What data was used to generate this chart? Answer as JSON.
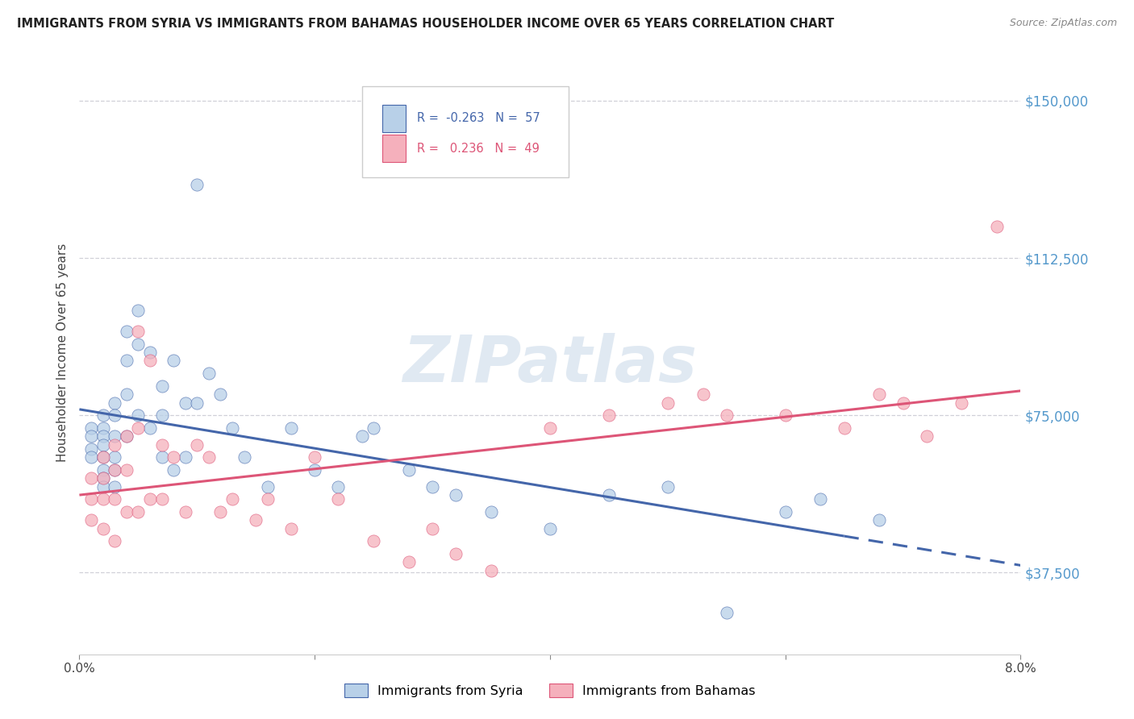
{
  "title": "IMMIGRANTS FROM SYRIA VS IMMIGRANTS FROM BAHAMAS HOUSEHOLDER INCOME OVER 65 YEARS CORRELATION CHART",
  "source": "Source: ZipAtlas.com",
  "ylabel": "Householder Income Over 65 years",
  "xlim": [
    0.0,
    0.08
  ],
  "ylim": [
    18000,
    162000
  ],
  "yticks": [
    37500,
    75000,
    112500,
    150000
  ],
  "ytick_labels": [
    "$37,500",
    "$75,000",
    "$112,500",
    "$150,000"
  ],
  "xticks": [
    0.0,
    0.02,
    0.04,
    0.06,
    0.08
  ],
  "xtick_labels": [
    "0.0%",
    "",
    "",
    "",
    "8.0%"
  ],
  "background_color": "#ffffff",
  "grid_color": "#d0d0d8",
  "legend_R_syria": "-0.263",
  "legend_N_syria": "57",
  "legend_R_bahamas": "0.236",
  "legend_N_bahamas": "49",
  "syria_color": "#b8d0e8",
  "bahamas_color": "#f5b0bc",
  "syria_line_color": "#4466aa",
  "bahamas_line_color": "#dd5577",
  "watermark": "ZIPatlas",
  "syria_scatter_x": [
    0.001,
    0.001,
    0.001,
    0.001,
    0.002,
    0.002,
    0.002,
    0.002,
    0.002,
    0.002,
    0.002,
    0.002,
    0.003,
    0.003,
    0.003,
    0.003,
    0.003,
    0.003,
    0.004,
    0.004,
    0.004,
    0.004,
    0.005,
    0.005,
    0.005,
    0.006,
    0.006,
    0.007,
    0.007,
    0.007,
    0.008,
    0.008,
    0.009,
    0.009,
    0.01,
    0.01,
    0.011,
    0.012,
    0.013,
    0.014,
    0.016,
    0.018,
    0.02,
    0.022,
    0.024,
    0.025,
    0.028,
    0.03,
    0.032,
    0.035,
    0.04,
    0.045,
    0.05,
    0.055,
    0.06,
    0.063,
    0.068
  ],
  "syria_scatter_y": [
    72000,
    70000,
    67000,
    65000,
    75000,
    72000,
    70000,
    68000,
    65000,
    62000,
    60000,
    58000,
    78000,
    75000,
    70000,
    65000,
    62000,
    58000,
    95000,
    88000,
    80000,
    70000,
    100000,
    92000,
    75000,
    90000,
    72000,
    82000,
    75000,
    65000,
    88000,
    62000,
    78000,
    65000,
    130000,
    78000,
    85000,
    80000,
    72000,
    65000,
    58000,
    72000,
    62000,
    58000,
    70000,
    72000,
    62000,
    58000,
    56000,
    52000,
    48000,
    56000,
    58000,
    28000,
    52000,
    55000,
    50000
  ],
  "bahamas_scatter_x": [
    0.001,
    0.001,
    0.001,
    0.002,
    0.002,
    0.002,
    0.002,
    0.003,
    0.003,
    0.003,
    0.003,
    0.004,
    0.004,
    0.004,
    0.005,
    0.005,
    0.005,
    0.006,
    0.006,
    0.007,
    0.007,
    0.008,
    0.009,
    0.01,
    0.011,
    0.012,
    0.013,
    0.015,
    0.016,
    0.018,
    0.02,
    0.022,
    0.025,
    0.028,
    0.03,
    0.032,
    0.035,
    0.04,
    0.045,
    0.05,
    0.053,
    0.055,
    0.06,
    0.065,
    0.068,
    0.07,
    0.072,
    0.075,
    0.078
  ],
  "bahamas_scatter_y": [
    60000,
    55000,
    50000,
    65000,
    60000,
    55000,
    48000,
    68000,
    62000,
    55000,
    45000,
    70000,
    62000,
    52000,
    95000,
    72000,
    52000,
    88000,
    55000,
    68000,
    55000,
    65000,
    52000,
    68000,
    65000,
    52000,
    55000,
    50000,
    55000,
    48000,
    65000,
    55000,
    45000,
    40000,
    48000,
    42000,
    38000,
    72000,
    75000,
    78000,
    80000,
    75000,
    75000,
    72000,
    80000,
    78000,
    70000,
    78000,
    120000
  ],
  "syria_line_solid_end": 0.065,
  "syria_line_dash_end": 0.08
}
